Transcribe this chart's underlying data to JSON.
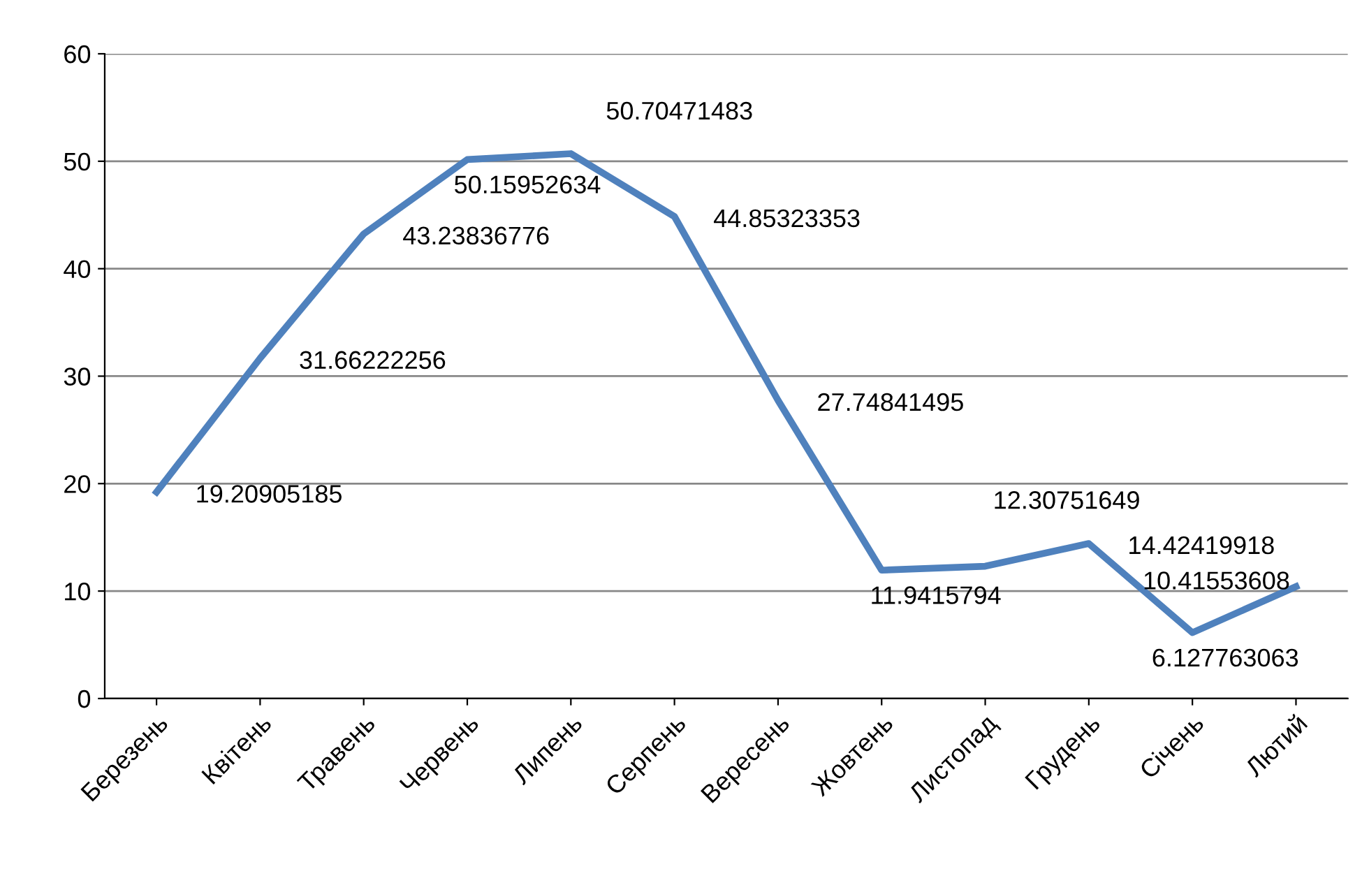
{
  "chart_data": {
    "type": "line",
    "categories": [
      "Березень",
      "Квітень",
      "Травень",
      "Червень",
      "Липень",
      "Серпень",
      "Вересень",
      "Жовтень",
      "Листопад",
      "Грудень",
      "Січень",
      "Лютий"
    ],
    "series": [
      {
        "color": "#4f81bd",
        "values": [
          19.20905185,
          31.66222256,
          43.23836776,
          50.15952634,
          50.70471483,
          44.85323353,
          27.74841495,
          11.9415794,
          12.30751649,
          14.42419918,
          6.127763063,
          10.41553608
        ]
      }
    ],
    "ylim": [
      0,
      60
    ],
    "yticks": [
      0,
      10,
      20,
      30,
      40,
      50,
      60
    ],
    "grid": "y",
    "data_labels": true,
    "marker": "none",
    "line_style": "solid",
    "legend": false
  }
}
